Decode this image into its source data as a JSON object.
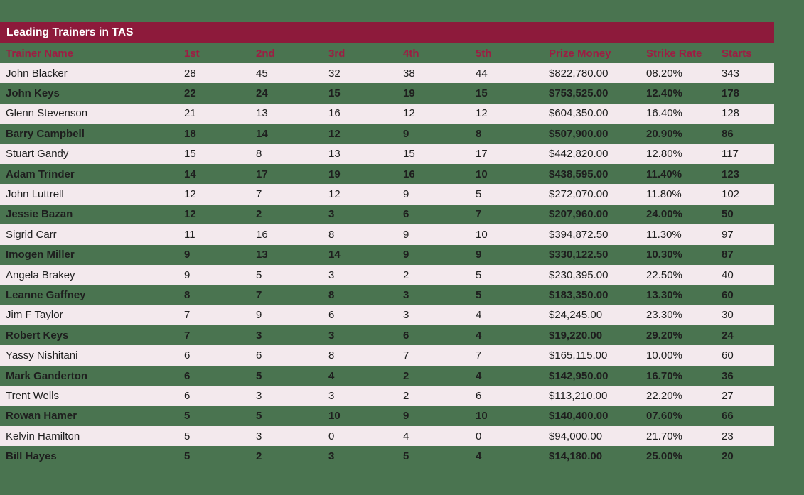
{
  "page": {
    "background_color": "#4A7450"
  },
  "table": {
    "title": "Leading Trainers in TAS",
    "title_bar_color": "#8D1A3B",
    "header_text_color": "#9E1C43",
    "row_alt_color": "#F3E9ED",
    "columns": [
      "Trainer Name",
      "1st",
      "2nd",
      "3rd",
      "4th",
      "5th",
      "Prize Money",
      "Strike Rate",
      "Starts"
    ],
    "rows": [
      [
        "John Blacker",
        "28",
        "45",
        "32",
        "38",
        "44",
        "$822,780.00",
        "08.20%",
        "343"
      ],
      [
        "John Keys",
        "22",
        "24",
        "15",
        "19",
        "15",
        "$753,525.00",
        "12.40%",
        "178"
      ],
      [
        "Glenn Stevenson",
        "21",
        "13",
        "16",
        "12",
        "12",
        "$604,350.00",
        "16.40%",
        "128"
      ],
      [
        "Barry Campbell",
        "18",
        "14",
        "12",
        "9",
        "8",
        "$507,900.00",
        "20.90%",
        "86"
      ],
      [
        "Stuart Gandy",
        "15",
        "8",
        "13",
        "15",
        "17",
        "$442,820.00",
        "12.80%",
        "117"
      ],
      [
        "Adam Trinder",
        "14",
        "17",
        "19",
        "16",
        "10",
        "$438,595.00",
        "11.40%",
        "123"
      ],
      [
        "John Luttrell",
        "12",
        "7",
        "12",
        "9",
        "5",
        "$272,070.00",
        "11.80%",
        "102"
      ],
      [
        "Jessie Bazan",
        "12",
        "2",
        "3",
        "6",
        "7",
        "$207,960.00",
        "24.00%",
        "50"
      ],
      [
        "Sigrid Carr",
        "11",
        "16",
        "8",
        "9",
        "10",
        "$394,872.50",
        "11.30%",
        "97"
      ],
      [
        "Imogen Miller",
        "9",
        "13",
        "14",
        "9",
        "9",
        "$330,122.50",
        "10.30%",
        "87"
      ],
      [
        "Angela Brakey",
        "9",
        "5",
        "3",
        "2",
        "5",
        "$230,395.00",
        "22.50%",
        "40"
      ],
      [
        "Leanne Gaffney",
        "8",
        "7",
        "8",
        "3",
        "5",
        "$183,350.00",
        "13.30%",
        "60"
      ],
      [
        "Jim F Taylor",
        "7",
        "9",
        "6",
        "3",
        "4",
        "$24,245.00",
        "23.30%",
        "30"
      ],
      [
        "Robert Keys",
        "7",
        "3",
        "3",
        "6",
        "4",
        "$19,220.00",
        "29.20%",
        "24"
      ],
      [
        "Yassy Nishitani",
        "6",
        "6",
        "8",
        "7",
        "7",
        "$165,115.00",
        "10.00%",
        "60"
      ],
      [
        "Mark Ganderton",
        "6",
        "5",
        "4",
        "2",
        "4",
        "$142,950.00",
        "16.70%",
        "36"
      ],
      [
        "Trent Wells",
        "6",
        "3",
        "3",
        "2",
        "6",
        "$113,210.00",
        "22.20%",
        "27"
      ],
      [
        "Rowan Hamer",
        "5",
        "5",
        "10",
        "9",
        "10",
        "$140,400.00",
        "07.60%",
        "66"
      ],
      [
        "Kelvin Hamilton",
        "5",
        "3",
        "0",
        "4",
        "0",
        "$94,000.00",
        "21.70%",
        "23"
      ],
      [
        "Bill Hayes",
        "5",
        "2",
        "3",
        "5",
        "4",
        "$14,180.00",
        "25.00%",
        "20"
      ]
    ]
  }
}
